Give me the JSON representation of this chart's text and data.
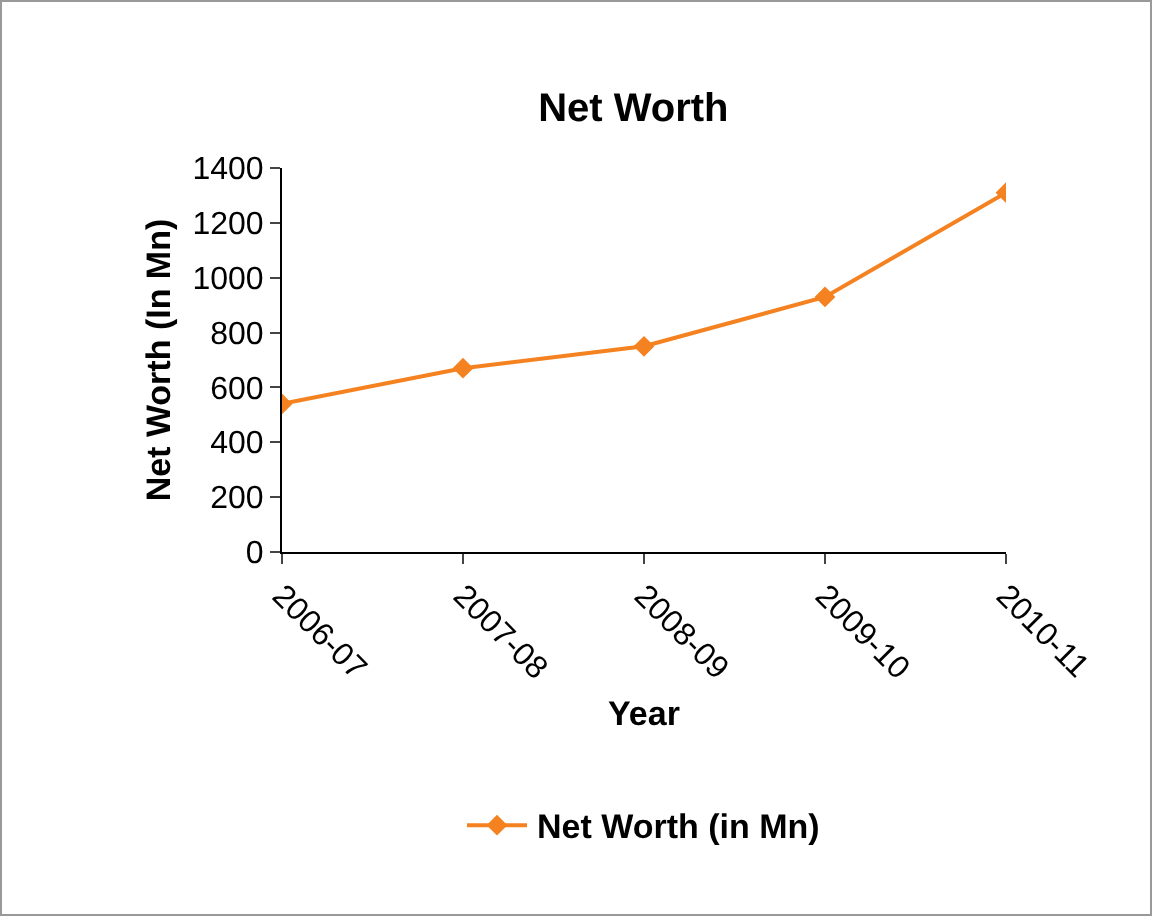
{
  "chart_data": {
    "type": "line",
    "title": "Net Worth",
    "xlabel": "Year",
    "ylabel": "Net Worth (In Mn)",
    "categories": [
      "2006-07",
      "2007-08",
      "2008-09",
      "2009-10",
      "2010-11"
    ],
    "series": [
      {
        "name": "Net Worth (in Mn)",
        "color": "#f58220",
        "values": [
          540,
          670,
          750,
          930,
          1310
        ]
      }
    ],
    "ylim": [
      0,
      1400
    ],
    "yticks": [
      0,
      200,
      400,
      600,
      800,
      1000,
      1200,
      1400
    ],
    "grid": false,
    "legend": "bottom",
    "marker": "diamond",
    "line_style": "solid"
  }
}
